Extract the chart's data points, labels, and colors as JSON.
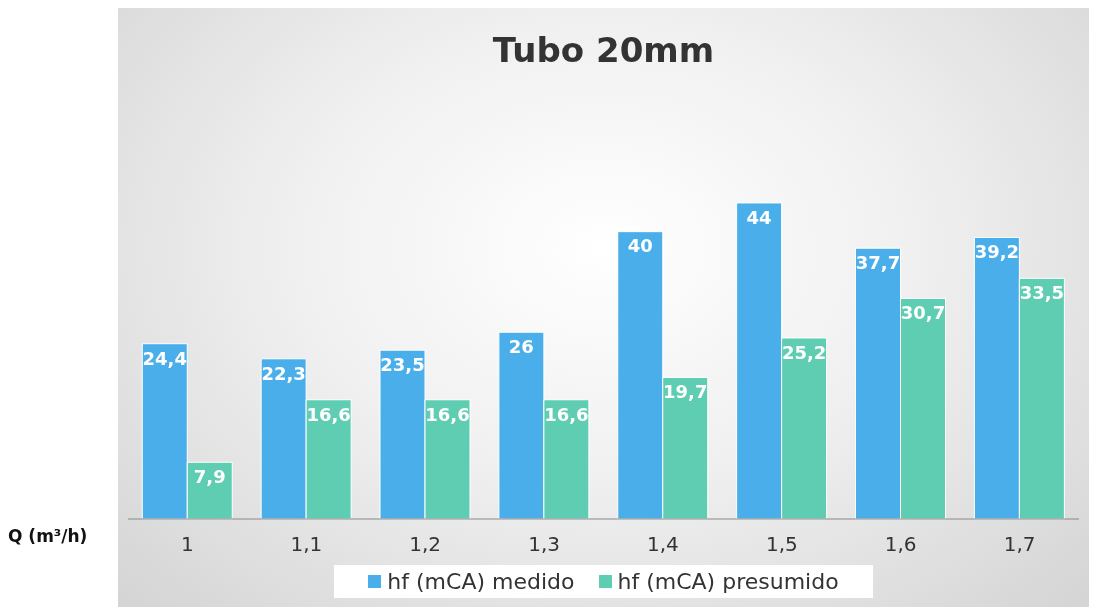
{
  "chart_data": {
    "type": "bar",
    "title": "Tubo 20mm",
    "xlabel": "Q (m³/h)",
    "categories": [
      "1",
      "1,1",
      "1,2",
      "1,3",
      "1,4",
      "1,5",
      "1,6",
      "1,7"
    ],
    "series": [
      {
        "name": "hf (mCA) medido",
        "color": "#4aaeea",
        "values": [
          24.4,
          22.3,
          23.5,
          26,
          40,
          44,
          37.7,
          39.2
        ],
        "value_labels": [
          "24,4",
          "22,3",
          "23,5",
          "26",
          "40",
          "44",
          "37,7",
          "39,2"
        ]
      },
      {
        "name": "hf (mCA) presumido",
        "color": "#5ecdb2",
        "values": [
          7.9,
          16.6,
          16.6,
          16.6,
          19.7,
          25.2,
          30.7,
          33.5
        ],
        "value_labels": [
          "7,9",
          "16,6",
          "16,6",
          "16,6",
          "19,7",
          "25,2",
          "30,7",
          "33,5"
        ]
      }
    ],
    "legend": "bottom"
  }
}
